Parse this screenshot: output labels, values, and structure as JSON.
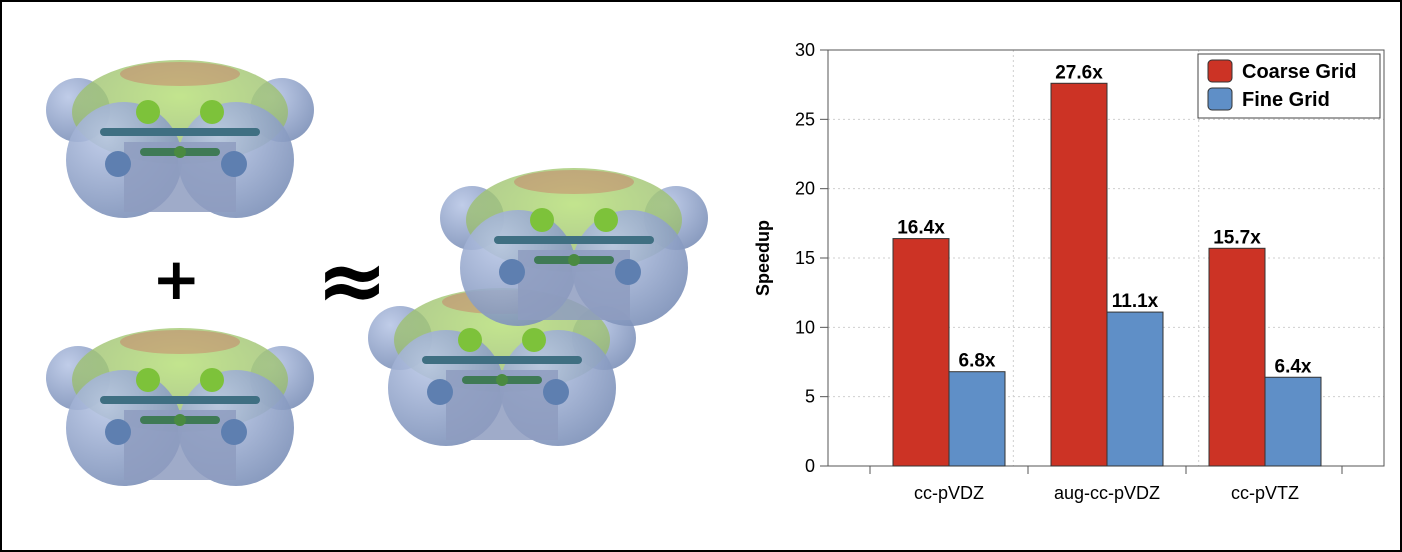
{
  "illustration": {
    "plus_symbol": "+",
    "approx_symbol": "≈",
    "molecule_icon": "benzene-space-filling-model-icon",
    "colors": {
      "hydrogen_blue": "#7c90b8",
      "carbon_green": "#7dc23a",
      "surface_red": "#d25a5a"
    }
  },
  "chart_data": {
    "type": "bar",
    "title": "",
    "xlabel": "",
    "ylabel": "Speedup",
    "ylim": [
      0,
      30
    ],
    "yticks": [
      "0",
      "5",
      "10",
      "15",
      "20",
      "25",
      "30"
    ],
    "categories": [
      "cc-pVDZ",
      "aug-cc-pVDZ",
      "cc-pVTZ"
    ],
    "grid": true,
    "legend_position": "top-right",
    "series": [
      {
        "name": "Coarse Grid",
        "color": "#cc3325",
        "values": [
          16.4,
          27.6,
          15.7
        ],
        "labels": [
          "16.4x",
          "27.6x",
          "15.7x"
        ]
      },
      {
        "name": "Fine Grid",
        "color": "#5f8fc7",
        "values": [
          6.8,
          11.1,
          6.4
        ],
        "labels": [
          "6.8x",
          "11.1x",
          "6.4x"
        ]
      }
    ]
  }
}
